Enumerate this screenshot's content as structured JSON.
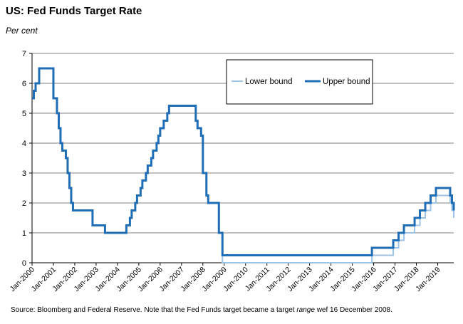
{
  "title": "US: Fed Funds Target Rate",
  "subtitle": "Per cent",
  "source": {
    "prefix": "Source: Bloomberg and Federal Reserve.  Note that the Fed Funds target became a target ",
    "italic": "range",
    "suffix": " wef 16 December 2008."
  },
  "colors": {
    "lower": "#9dc3e6",
    "upper": "#1f6db5",
    "grid": "#808080"
  },
  "chart_data": {
    "type": "line",
    "ylim": [
      0,
      7
    ],
    "yticks": [
      0,
      1,
      2,
      3,
      4,
      5,
      6,
      7
    ],
    "xlim": [
      "2000-01",
      "2019-10"
    ],
    "xtick_labels": [
      "Jan-2000",
      "Jan-2001",
      "Jan-2002",
      "Jan-2003",
      "Jan-2004",
      "Jan-2005",
      "Jan-2006",
      "Jan-2007",
      "Jan-2008",
      "Jan-2009",
      "Jan-2010",
      "Jan-2011",
      "Jan-2012",
      "Jan-2013",
      "Jan-2014",
      "Jan-2015",
      "Jan-2016",
      "Jan-2017",
      "Jan-2018",
      "Jan-2019"
    ],
    "grid": true,
    "legend_position": "top-right",
    "series": [
      {
        "name": "Lower bound",
        "steps": [
          [
            "2000-01",
            5.5
          ],
          [
            "2000-02",
            5.75
          ],
          [
            "2000-03",
            6.0
          ],
          [
            "2000-05",
            6.5
          ],
          [
            "2001-01",
            5.5
          ],
          [
            "2001-03",
            5.0
          ],
          [
            "2001-04",
            4.5
          ],
          [
            "2001-05",
            4.0
          ],
          [
            "2001-06",
            3.75
          ],
          [
            "2001-08",
            3.5
          ],
          [
            "2001-09",
            3.0
          ],
          [
            "2001-10",
            2.5
          ],
          [
            "2001-11",
            2.0
          ],
          [
            "2001-12",
            1.75
          ],
          [
            "2002-11",
            1.25
          ],
          [
            "2003-06",
            1.0
          ],
          [
            "2004-06",
            1.25
          ],
          [
            "2004-08",
            1.5
          ],
          [
            "2004-09",
            1.75
          ],
          [
            "2004-11",
            2.0
          ],
          [
            "2004-12",
            2.25
          ],
          [
            "2005-02",
            2.5
          ],
          [
            "2005-03",
            2.75
          ],
          [
            "2005-05",
            3.0
          ],
          [
            "2005-06",
            3.25
          ],
          [
            "2005-08",
            3.5
          ],
          [
            "2005-09",
            3.75
          ],
          [
            "2005-11",
            4.0
          ],
          [
            "2005-12",
            4.25
          ],
          [
            "2006-01",
            4.5
          ],
          [
            "2006-03",
            4.75
          ],
          [
            "2006-05",
            5.0
          ],
          [
            "2006-06",
            5.25
          ],
          [
            "2007-09",
            4.75
          ],
          [
            "2007-10",
            4.5
          ],
          [
            "2007-12",
            4.25
          ],
          [
            "2008-01",
            3.0
          ],
          [
            "2008-03",
            2.25
          ],
          [
            "2008-04",
            2.0
          ],
          [
            "2008-10",
            1.0
          ],
          [
            "2008-12",
            0.0
          ],
          [
            "2015-12",
            0.25
          ],
          [
            "2016-12",
            0.5
          ],
          [
            "2017-03",
            0.75
          ],
          [
            "2017-06",
            1.0
          ],
          [
            "2017-12",
            1.25
          ],
          [
            "2018-03",
            1.5
          ],
          [
            "2018-06",
            1.75
          ],
          [
            "2018-09",
            2.0
          ],
          [
            "2018-12",
            2.25
          ],
          [
            "2019-08",
            2.0
          ],
          [
            "2019-09",
            1.75
          ],
          [
            "2019-10",
            1.5
          ]
        ]
      },
      {
        "name": "Upper bound",
        "steps": [
          [
            "2000-01",
            5.5
          ],
          [
            "2000-02",
            5.75
          ],
          [
            "2000-03",
            6.0
          ],
          [
            "2000-05",
            6.5
          ],
          [
            "2001-01",
            5.5
          ],
          [
            "2001-03",
            5.0
          ],
          [
            "2001-04",
            4.5
          ],
          [
            "2001-05",
            4.0
          ],
          [
            "2001-06",
            3.75
          ],
          [
            "2001-08",
            3.5
          ],
          [
            "2001-09",
            3.0
          ],
          [
            "2001-10",
            2.5
          ],
          [
            "2001-11",
            2.0
          ],
          [
            "2001-12",
            1.75
          ],
          [
            "2002-11",
            1.25
          ],
          [
            "2003-06",
            1.0
          ],
          [
            "2004-06",
            1.25
          ],
          [
            "2004-08",
            1.5
          ],
          [
            "2004-09",
            1.75
          ],
          [
            "2004-11",
            2.0
          ],
          [
            "2004-12",
            2.25
          ],
          [
            "2005-02",
            2.5
          ],
          [
            "2005-03",
            2.75
          ],
          [
            "2005-05",
            3.0
          ],
          [
            "2005-06",
            3.25
          ],
          [
            "2005-08",
            3.5
          ],
          [
            "2005-09",
            3.75
          ],
          [
            "2005-11",
            4.0
          ],
          [
            "2005-12",
            4.25
          ],
          [
            "2006-01",
            4.5
          ],
          [
            "2006-03",
            4.75
          ],
          [
            "2006-05",
            5.0
          ],
          [
            "2006-06",
            5.25
          ],
          [
            "2007-09",
            4.75
          ],
          [
            "2007-10",
            4.5
          ],
          [
            "2007-12",
            4.25
          ],
          [
            "2008-01",
            3.0
          ],
          [
            "2008-03",
            2.25
          ],
          [
            "2008-04",
            2.0
          ],
          [
            "2008-10",
            1.0
          ],
          [
            "2008-12",
            0.25
          ],
          [
            "2015-12",
            0.5
          ],
          [
            "2016-12",
            0.75
          ],
          [
            "2017-03",
            1.0
          ],
          [
            "2017-06",
            1.25
          ],
          [
            "2017-12",
            1.5
          ],
          [
            "2018-03",
            1.75
          ],
          [
            "2018-06",
            2.0
          ],
          [
            "2018-09",
            2.25
          ],
          [
            "2018-12",
            2.5
          ],
          [
            "2019-08",
            2.25
          ],
          [
            "2019-09",
            2.0
          ],
          [
            "2019-10",
            1.75
          ]
        ]
      }
    ]
  }
}
